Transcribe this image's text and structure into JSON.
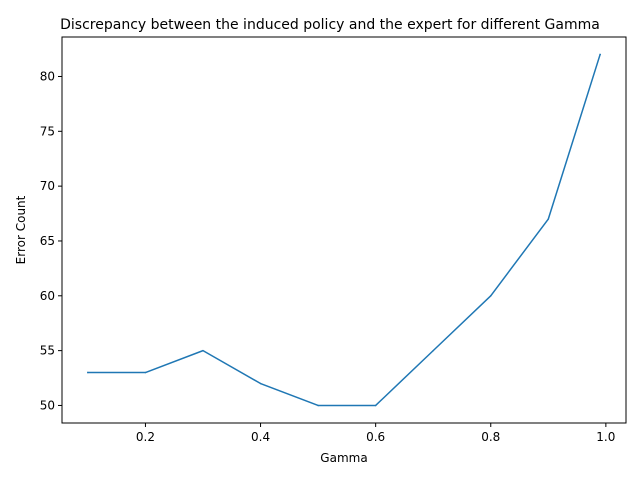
{
  "chart_data": {
    "type": "line",
    "title": "Discrepancy between the induced policy and the expert for different Gamma",
    "xlabel": "Gamma",
    "ylabel": "Error Count",
    "xlim": [
      0.055,
      1.035
    ],
    "ylim": [
      48.4,
      83.6
    ],
    "xticks": [
      0.2,
      0.4,
      0.6,
      0.8,
      1.0
    ],
    "xtick_labels": [
      "0.2",
      "0.4",
      "0.6",
      "0.8",
      "1.0"
    ],
    "yticks": [
      50,
      55,
      60,
      65,
      70,
      75,
      80
    ],
    "ytick_labels": [
      "50",
      "55",
      "60",
      "65",
      "70",
      "75",
      "80"
    ],
    "grid": false,
    "legend": false,
    "series": [
      {
        "color": "#1f77b4",
        "x": [
          0.1,
          0.2,
          0.3,
          0.4,
          0.5,
          0.6,
          0.7,
          0.8,
          0.9,
          0.99
        ],
        "y": [
          53,
          53,
          55,
          52,
          50,
          50,
          55,
          60,
          67,
          82
        ]
      }
    ]
  }
}
